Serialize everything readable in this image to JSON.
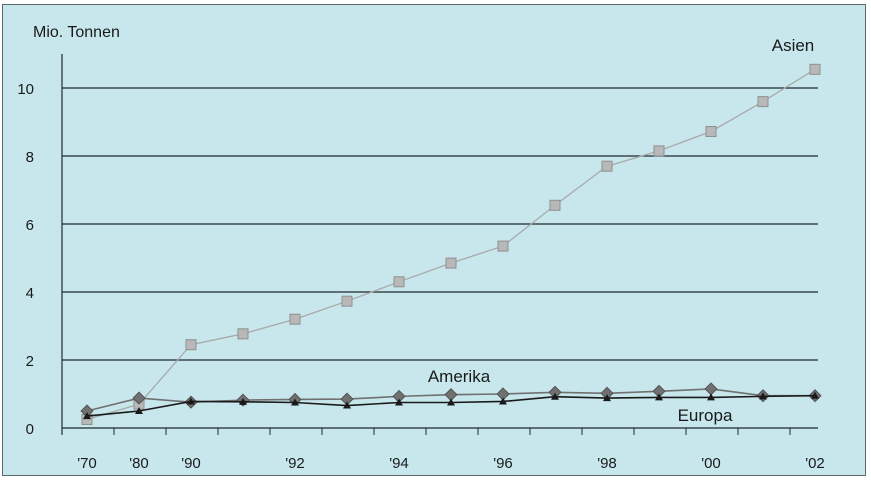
{
  "chart_data": {
    "type": "line",
    "ylabel": "Mio. Tonnen",
    "xlabel": "",
    "title": "",
    "ylim": [
      0,
      11
    ],
    "yticks": [
      0,
      2,
      4,
      6,
      8,
      10
    ],
    "grid": "horizontal",
    "legend": "inline labels",
    "x": [
      1970,
      1980,
      1990,
      1991,
      1992,
      1993,
      1994,
      1995,
      1996,
      1997,
      1998,
      1999,
      2000,
      2001,
      2002
    ],
    "x_tick_labels": [
      "'70",
      "'80",
      "'90",
      "'92",
      "'94",
      "'96",
      "'98",
      "'00",
      "'02"
    ],
    "series": [
      {
        "name": "Asien",
        "color": "#a9a9a9",
        "marker": "square",
        "values": [
          0.25,
          0.7,
          2.45,
          2.77,
          3.2,
          3.73,
          4.3,
          4.85,
          5.35,
          6.55,
          7.7,
          8.15,
          8.72,
          9.6,
          10.55
        ]
      },
      {
        "name": "Amerika",
        "color": "#707070",
        "marker": "diamond",
        "values": [
          0.5,
          0.88,
          0.76,
          0.82,
          0.84,
          0.85,
          0.93,
          0.98,
          1.0,
          1.05,
          1.02,
          1.08,
          1.15,
          0.95,
          0.95
        ]
      },
      {
        "name": "Europa",
        "color": "#1a1a1a",
        "marker": "triangle",
        "values": [
          0.35,
          0.5,
          0.78,
          0.77,
          0.75,
          0.66,
          0.75,
          0.75,
          0.78,
          0.92,
          0.88,
          0.9,
          0.9,
          0.93,
          0.95
        ]
      }
    ]
  }
}
